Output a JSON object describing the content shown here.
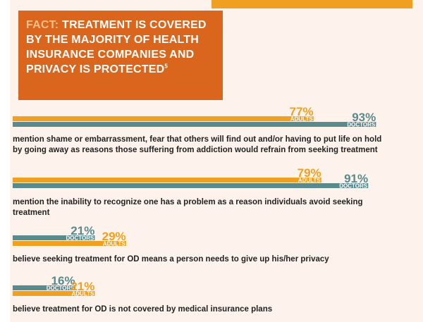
{
  "fact": {
    "label": "FACT:",
    "text": "TREATMENT IS COVERED BY THE MAJORITY OF HEALTH INSURANCE COMPANIES AND PRIVACY IS PROTECTED",
    "footnote": "5"
  },
  "colors": {
    "adults": "#f0a020",
    "doctors": "#5a8a8c",
    "fact_bg": "#d9661c",
    "fact_label": "#f7c08f",
    "top_bar": "#f0a020"
  },
  "chart_data": {
    "type": "bar",
    "orientation": "horizontal",
    "unit": "%",
    "series": [
      {
        "name": "ADULTS",
        "values": [
          77,
          79,
          29,
          21
        ]
      },
      {
        "name": "DOCTORS",
        "values": [
          93,
          91,
          21,
          16
        ]
      }
    ],
    "captions": [
      "mention shame or embarrassment, fear that others will find out and/or having to put life on hold by going away as reasons those suffering from addiction would refrain from seeking treatment",
      "mention the inability to recognize one has a problem as a reason individuals avoid seeking treatment",
      "believe seeking treatment for OD means a person needs to give up his/her privacy",
      "believe treatment for OD is not covered by medical insurance plans"
    ],
    "value_labels": {
      "ADULTS": [
        "77%",
        "79%",
        "29%",
        "21%"
      ],
      "DOCTORS": [
        "93%",
        "91%",
        "21%",
        "16%"
      ]
    }
  }
}
